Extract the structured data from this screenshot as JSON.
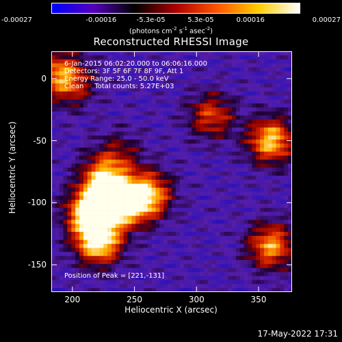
{
  "colorbar": {
    "ticks": [
      "-0.00027",
      "-0.00016",
      "-5.3e-05",
      "5.3e-05",
      "0.00016",
      "0.00027"
    ],
    "units_main": "(photons cm",
    "units_sup1": "-2",
    "units_mid": " s",
    "units_sup2": "-1",
    "units_mid2": " asec",
    "units_sup3": "-2",
    "units_end": ")",
    "colors": [
      "#0000ff",
      "#5500bb",
      "#000000",
      "#aa0000",
      "#ff5500",
      "#ffcc00",
      "#ffffff"
    ]
  },
  "annotations": {
    "line1": "6-Jan-2015 06:02:20.000 to 06:06:16.000",
    "line2": "Detectors: 3F 5F 6F 7F 8F 9F, Att 1",
    "line3": "Energy Range: 25.0 - 50.0 keV",
    "line4": "Clean     Total counts: 5.27E+03",
    "peak": "Position of Peak = [221,-131]"
  },
  "footer": {
    "timestamp": "17-May-2022 17:31"
  },
  "chart_data": {
    "type": "heatmap",
    "title": "Reconstructed RHESSI Image",
    "xlabel": "Heliocentric X (arcsec)",
    "ylabel": "Heliocentric Y (arcsec)",
    "xlim": [
      183,
      377
    ],
    "ylim": [
      -172,
      22
    ],
    "xticks": [
      200,
      250,
      300,
      350
    ],
    "yticks": [
      0,
      -50,
      -100,
      -150
    ],
    "xtick_labels": [
      "200",
      "250",
      "300",
      "350"
    ],
    "ytick_labels": [
      "0",
      "-50",
      "-100",
      "-150"
    ],
    "peak": [
      221,
      -131
    ],
    "sources": [
      {
        "x": 221,
        "y": -131,
        "intensity": 1.0
      },
      {
        "x": 213,
        "y": -108,
        "intensity": 0.85
      },
      {
        "x": 230,
        "y": -100,
        "intensity": 0.8
      },
      {
        "x": 225,
        "y": -80,
        "intensity": 0.7
      },
      {
        "x": 250,
        "y": -100,
        "intensity": 0.7
      },
      {
        "x": 263,
        "y": -92,
        "intensity": 0.6
      },
      {
        "x": 360,
        "y": -50,
        "intensity": 0.85
      },
      {
        "x": 360,
        "y": -135,
        "intensity": 0.75
      },
      {
        "x": 312,
        "y": -30,
        "intensity": 0.55
      },
      {
        "x": 188,
        "y": 5,
        "intensity": 0.55
      },
      {
        "x": 200,
        "y": -5,
        "intensity": 0.4
      },
      {
        "x": 238,
        "y": -60,
        "intensity": 0.3
      }
    ]
  }
}
